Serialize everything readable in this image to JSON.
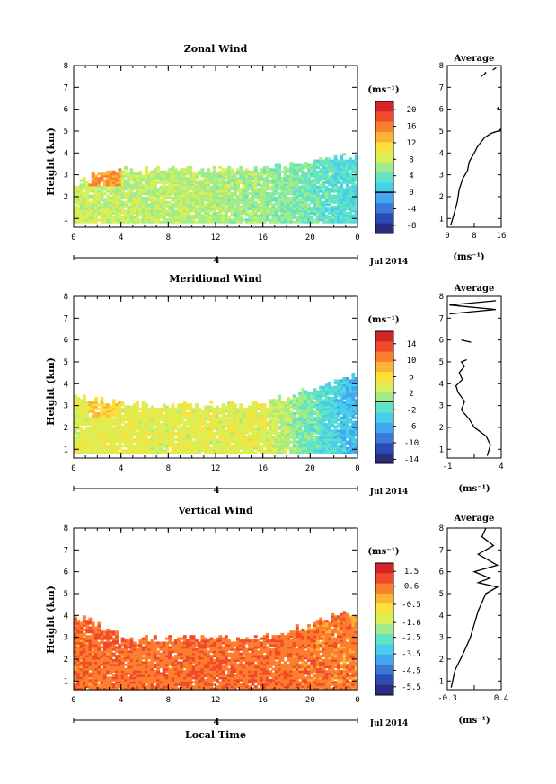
{
  "date_label": "Jul 2014",
  "day_label": "4",
  "x_title": "Local Time",
  "x_ticks": [
    "0",
    "4",
    "8",
    "12",
    "16",
    "20",
    "0"
  ],
  "y_title": "Height (km)",
  "y_ticks": [
    "1",
    "2",
    "3",
    "4",
    "5",
    "6",
    "7",
    "8"
  ],
  "avg_title": "Average",
  "unit_label": "(ms⁻¹)",
  "colorscale": [
    "#2b2c7f",
    "#2e4bb5",
    "#3a79d8",
    "#41a7ee",
    "#46cfe9",
    "#63e3c6",
    "#a1ec8a",
    "#d9ef55",
    "#fbe13a",
    "#fcb434",
    "#fb7f2f",
    "#f04a2b",
    "#d62426"
  ],
  "chart_data": [
    {
      "type": "heatmap",
      "title": "Zonal Wind",
      "xlabel": "",
      "ylabel": "Height (km)",
      "xlim": [
        0,
        24
      ],
      "ylim": [
        0.6,
        8
      ],
      "colorbar": {
        "min": -10,
        "max": 22,
        "ticks": [
          "20",
          "16",
          "12",
          "8",
          "4",
          "0",
          "-4",
          "-8"
        ],
        "zero_line": 0
      },
      "profile": {
        "xlim": [
          0,
          16
        ],
        "xticks": [
          "0",
          "8",
          "16"
        ],
        "x": [
          1,
          2,
          3,
          3.5,
          4.5,
          6,
          6.5,
          8,
          9,
          11,
          13,
          15,
          16,
          15.5
        ],
        "y": [
          0.7,
          1.2,
          1.8,
          2.3,
          2.8,
          3.2,
          3.6,
          4.0,
          4.3,
          4.7,
          4.9,
          5.0,
          5.1,
          5.0
        ],
        "fragments": [
          {
            "x": [
              14.8,
              15.2
            ],
            "y": [
              6.0,
              6.1
            ]
          },
          {
            "x": [
              10,
              11,
              11.5
            ],
            "y": [
              7.5,
              7.6,
              7.7
            ]
          },
          {
            "x": [
              13.5,
              14.5
            ],
            "y": [
              7.8,
              7.9
            ]
          }
        ]
      },
      "field": {
        "top_base": 3.2,
        "top_start": 2.6,
        "top_end": 3.9,
        "bottom": 0.8,
        "base_value": 8,
        "mid_value": 6,
        "late_value": 2,
        "early_bump": 14
      }
    },
    {
      "type": "heatmap",
      "title": "Meridional Wind",
      "xlabel": "",
      "ylabel": "Height (km)",
      "xlim": [
        0,
        24
      ],
      "ylim": [
        0.6,
        8
      ],
      "colorbar": {
        "min": -15,
        "max": 17,
        "ticks": [
          "14",
          "10",
          "6",
          "2",
          "-2",
          "-6",
          "-10",
          "-14"
        ],
        "zero_line": 0
      },
      "profile": {
        "xlim": [
          -1,
          4
        ],
        "xticks": [
          "-1",
          "",
          "4"
        ],
        "x": [
          2.7,
          3,
          2.6,
          1.5,
          1,
          0.3,
          0.6,
          0,
          -0.2,
          0.4,
          0.1,
          0.6,
          0.3,
          0.8
        ],
        "y": [
          0.7,
          1.2,
          1.6,
          2.0,
          2.4,
          2.8,
          3.2,
          3.6,
          3.9,
          4.2,
          4.5,
          4.8,
          5.0,
          5.1
        ],
        "fragments": [
          {
            "x": [
              0.3,
              1.2
            ],
            "y": [
              6.0,
              5.9
            ]
          },
          {
            "x": [
              -0.8,
              3.5,
              -0.8,
              3.5
            ],
            "y": [
              7.2,
              7.4,
              7.6,
              7.8
            ]
          }
        ]
      },
      "field": {
        "top_base": 3.0,
        "top_start": 3.4,
        "top_end": 4.4,
        "bottom": 0.8,
        "base_value": 4,
        "mid_value": 4,
        "late_value": -6,
        "early_bump": 6
      }
    },
    {
      "type": "heatmap",
      "title": "Vertical Wind",
      "xlabel": "Local Time",
      "ylabel": "Height (km)",
      "xlim": [
        0,
        24
      ],
      "ylim": [
        0.6,
        8
      ],
      "colorbar": {
        "min": -6,
        "max": 2,
        "ticks": [
          "1.5",
          "0.6",
          "-0.5",
          "-1.6",
          "-2.5",
          "-3.5",
          "-4.5",
          "-5.5"
        ],
        "zero_line": null
      },
      "profile": {
        "xlim": [
          -0.3,
          0.4
        ],
        "xticks": [
          "-0.3",
          "",
          "0.4"
        ],
        "x": [
          -0.25,
          -0.2,
          -0.1,
          0.0,
          0.05,
          0.1,
          0.15,
          0.2,
          0.35,
          0.1,
          0.25,
          0.05,
          0.35,
          0.1,
          0.3,
          0.15,
          0.2
        ],
        "y": [
          0.7,
          1.5,
          2.2,
          3.0,
          3.6,
          4.2,
          4.6,
          5.0,
          5.3,
          5.5,
          5.7,
          6.0,
          6.3,
          6.8,
          7.2,
          7.6,
          8.0
        ]
      },
      "field": {
        "top_base": 2.9,
        "top_start": 4.0,
        "top_end": 4.2,
        "bottom": 0.6,
        "base_value": 0.6,
        "mid_value": 0.7,
        "late_value": 0.4,
        "early_bump": 0.3
      }
    }
  ]
}
